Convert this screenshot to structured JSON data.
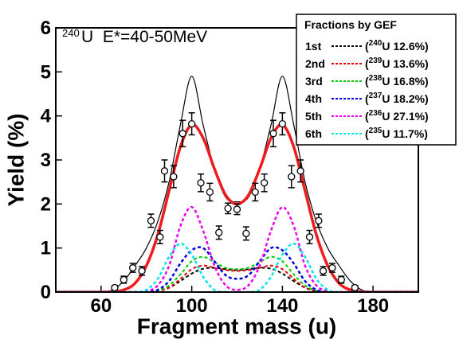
{
  "chart_data": {
    "type": "line",
    "title_superscript": "240",
    "title": "U  E*=40-50MeV",
    "xlabel": "Fragment mass (u)",
    "ylabel": "Yield (%)",
    "xlim": [
      40,
      200
    ],
    "xticks": [
      60,
      100,
      140,
      180
    ],
    "ylim": [
      0,
      6
    ],
    "yticks": [
      0,
      1,
      2,
      3,
      4,
      5,
      6
    ],
    "legend_title": "Fractions by GEF",
    "legend_position": "upper right",
    "x": [
      40,
      45,
      50,
      55,
      60,
      65,
      70,
      75,
      80,
      85,
      90,
      95,
      100,
      105,
      110,
      115,
      120,
      125,
      130,
      135,
      140,
      145,
      150,
      155,
      160,
      165,
      170,
      175,
      180,
      185,
      190,
      195,
      200
    ],
    "series": [
      {
        "color": "#000000",
        "width": 1.2,
        "dashed": false,
        "values": [
          0,
          0,
          0,
          0,
          0,
          0.05,
          0.25,
          0.6,
          1.0,
          1.6,
          2.5,
          3.8,
          4.9,
          3.8,
          2.8,
          2.15,
          2.05,
          2.15,
          2.8,
          3.8,
          4.9,
          3.8,
          2.5,
          1.6,
          1.0,
          0.6,
          0.25,
          0.05,
          0,
          0,
          0,
          0,
          0
        ]
      },
      {
        "color": "#ee1c1c",
        "width": 3.5,
        "dashed": false,
        "values": [
          0,
          0,
          0,
          0,
          0,
          0.01,
          0.05,
          0.2,
          0.6,
          1.3,
          2.3,
          3.3,
          3.8,
          3.5,
          2.8,
          2.2,
          2.0,
          2.2,
          2.8,
          3.5,
          3.8,
          3.3,
          2.3,
          1.3,
          0.6,
          0.2,
          0.05,
          0.01,
          0,
          0,
          0,
          0,
          0
        ]
      },
      {
        "name": "1st",
        "label": [
          "(",
          "240",
          "U  12.6%)"
        ],
        "color": "#000000",
        "width": 2,
        "dashed": true,
        "values": [
          0,
          0,
          0,
          0,
          0,
          0,
          0,
          0,
          0,
          0.02,
          0.1,
          0.25,
          0.42,
          0.53,
          0.55,
          0.52,
          0.5,
          0.52,
          0.55,
          0.53,
          0.42,
          0.25,
          0.1,
          0.02,
          0,
          0,
          0,
          0,
          0,
          0,
          0,
          0,
          0
        ]
      },
      {
        "name": "2nd",
        "label": [
          "(",
          "239",
          "U  13.6%)"
        ],
        "color": "#e00000",
        "width": 2,
        "dashed": true,
        "values": [
          0,
          0,
          0,
          0,
          0,
          0,
          0,
          0,
          0,
          0.02,
          0.1,
          0.3,
          0.52,
          0.6,
          0.55,
          0.5,
          0.48,
          0.5,
          0.55,
          0.6,
          0.52,
          0.3,
          0.1,
          0.02,
          0,
          0,
          0,
          0,
          0,
          0,
          0,
          0,
          0
        ]
      },
      {
        "name": "3rd",
        "label": [
          "(",
          "238",
          "U  16.8%)"
        ],
        "color": "#00cc00",
        "width": 2,
        "dashed": true,
        "values": [
          0,
          0,
          0,
          0,
          0,
          0,
          0,
          0,
          0,
          0.03,
          0.15,
          0.4,
          0.7,
          0.8,
          0.68,
          0.55,
          0.52,
          0.55,
          0.68,
          0.8,
          0.7,
          0.4,
          0.15,
          0.03,
          0,
          0,
          0,
          0,
          0,
          0,
          0,
          0,
          0
        ]
      },
      {
        "name": "4th",
        "label": [
          "(",
          "237",
          "U  18.2%)"
        ],
        "color": "#0000dd",
        "width": 2.5,
        "dashed": true,
        "values": [
          0,
          0,
          0,
          0,
          0,
          0,
          0,
          0,
          0,
          0.05,
          0.25,
          0.65,
          0.95,
          1.0,
          0.7,
          0.38,
          0.3,
          0.38,
          0.7,
          1.0,
          0.95,
          0.65,
          0.25,
          0.05,
          0,
          0,
          0,
          0,
          0,
          0,
          0,
          0,
          0
        ]
      },
      {
        "name": "5th",
        "label": [
          "(",
          "236",
          "U  27.1%)"
        ],
        "color": "#ee00ee",
        "width": 2.5,
        "dashed": true,
        "values": [
          0,
          0,
          0,
          0,
          0,
          0,
          0,
          0,
          0.02,
          0.15,
          0.6,
          1.5,
          1.93,
          1.4,
          0.6,
          0.15,
          0.05,
          0.15,
          0.6,
          1.4,
          1.93,
          1.5,
          0.6,
          0.15,
          0.02,
          0,
          0,
          0,
          0,
          0,
          0,
          0,
          0
        ]
      },
      {
        "name": "6th",
        "label": [
          "(",
          "235",
          "U  11.7%)"
        ],
        "color": "#00e5ee",
        "width": 2.5,
        "dashed": true,
        "values": [
          0,
          0,
          0,
          0,
          0,
          0,
          0,
          0,
          0.05,
          0.3,
          0.8,
          1.1,
          0.85,
          0.35,
          0.05,
          0,
          0,
          0,
          0.05,
          0.35,
          0.85,
          1.1,
          0.8,
          0.3,
          0.05,
          0,
          0,
          0,
          0,
          0,
          0,
          0,
          0
        ]
      }
    ],
    "points": {
      "color": "#000000",
      "x": [
        66,
        70,
        74,
        78,
        82,
        86,
        88,
        92,
        96,
        100,
        104,
        108,
        112,
        116,
        120,
        124,
        128,
        132,
        136,
        140,
        144,
        148,
        152,
        156,
        158,
        162,
        166,
        172
      ],
      "values": [
        0.1,
        0.28,
        0.55,
        0.48,
        1.62,
        1.25,
        2.75,
        2.62,
        3.6,
        3.82,
        2.48,
        2.27,
        1.35,
        1.9,
        1.88,
        1.33,
        2.27,
        2.48,
        3.6,
        3.82,
        2.62,
        2.75,
        1.25,
        1.62,
        0.48,
        0.55,
        0.28,
        0.1
      ],
      "errors": [
        0.05,
        0.08,
        0.1,
        0.1,
        0.15,
        0.15,
        0.25,
        0.25,
        0.3,
        0.25,
        0.2,
        0.2,
        0.15,
        0.12,
        0.12,
        0.15,
        0.2,
        0.2,
        0.3,
        0.25,
        0.25,
        0.25,
        0.15,
        0.15,
        0.1,
        0.1,
        0.08,
        0.05
      ]
    }
  }
}
